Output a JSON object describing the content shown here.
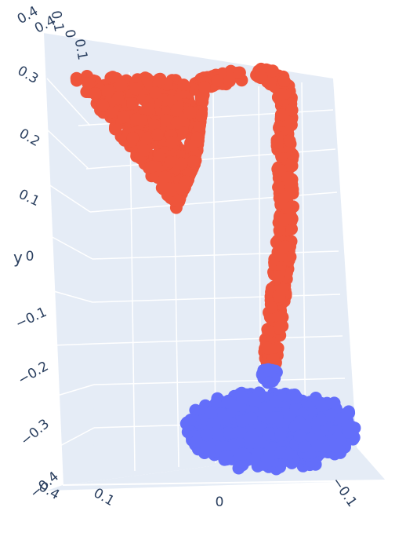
{
  "chart_data": {
    "type": "scatter3d",
    "title": "",
    "grid": true,
    "background_color": "#e5ecf6",
    "grid_color": "#ffffff",
    "y_axis": {
      "label": "y",
      "ticks": [
        "0.4",
        "0.3",
        "0.2",
        "0.1",
        "0",
        "−0.1",
        "−0.2",
        "−0.3",
        "−0.4"
      ]
    },
    "top_ticks": [
      "0.4",
      "0.1",
      "0",
      "0.1"
    ],
    "bottom_ticks": [
      "0.4",
      "0.1",
      "0",
      "−0.1"
    ],
    "series": [
      {
        "color": "#ef553b",
        "part": "lamp-head-and-neck"
      },
      {
        "color": "#636efa",
        "part": "lamp-base"
      }
    ]
  }
}
